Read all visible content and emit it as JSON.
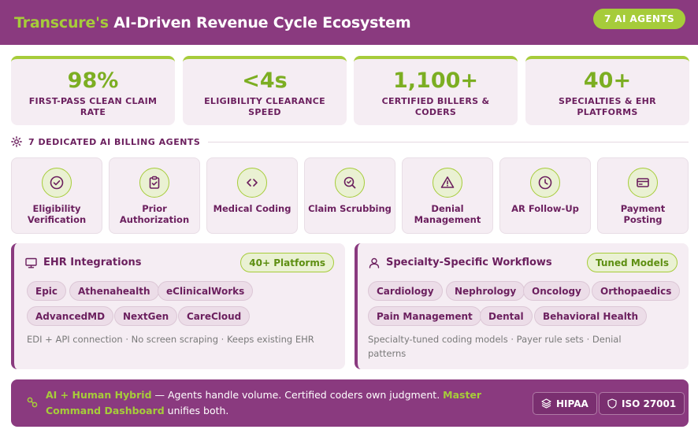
{
  "header": {
    "brand": "Transcure's",
    "title_rest": " AI-Driven Revenue Cycle Ecosystem",
    "badge": "7 AI AGENTS"
  },
  "stats": [
    {
      "value": "98%",
      "label": "FIRST-PASS CLEAN CLAIM RATE"
    },
    {
      "value": "<4s",
      "label": "ELIGIBILITY CLEARANCE SPEED"
    },
    {
      "value": "1,100+",
      "label": "CERTIFIED BILLERS & CODERS"
    },
    {
      "value": "40+",
      "label": "SPECIALTIES & EHR PLATFORMS"
    }
  ],
  "agents_section": {
    "label": "7 DEDICATED AI BILLING AGENTS",
    "icon": "sparkle-icon"
  },
  "agents": [
    {
      "name": "Eligibility Verification",
      "icon": "check-circle-icon"
    },
    {
      "name": "Prior Authorization",
      "icon": "clipboard-check-icon"
    },
    {
      "name": "Medical Coding",
      "icon": "code-brackets-icon"
    },
    {
      "name": "Claim Scrubbing",
      "icon": "search-check-icon"
    },
    {
      "name": "Denial Management",
      "icon": "warning-triangle-icon"
    },
    {
      "name": "AR Follow-Up",
      "icon": "clock-icon"
    },
    {
      "name": "Payment Posting",
      "icon": "credit-card-icon"
    }
  ],
  "ehr": {
    "title": "EHR Integrations",
    "pill": "40+ Platforms",
    "tags": [
      "Epic",
      "Athenahealth",
      "eClinicalWorks",
      "AdvancedMD",
      "NextGen",
      "CareCloud"
    ],
    "note": "EDI + API connection · No screen scraping · Keeps existing EHR"
  },
  "specialty": {
    "title": "Specialty-Specific Workflows",
    "pill": "Tuned Models",
    "tags": [
      "Cardiology",
      "Nephrology",
      "Oncology",
      "Orthopaedics",
      "Pain Management",
      "Dental",
      "Behavioral Health"
    ],
    "note": "Specialty-tuned coding models · Payer rule sets · Denial patterns"
  },
  "footer": {
    "hl1": "AI + Human Hybrid",
    "text1": " — Agents handle volume. Certified coders own judgment. ",
    "hl2": "Master Command Dashboard",
    "text2": " unifies both.",
    "badges": [
      "HIPAA",
      "ISO 27001"
    ]
  },
  "colors": {
    "primary": "#8a3a7f",
    "accent": "#a6cc3a",
    "text": "#6b1f5e",
    "card": "#f5edf3"
  }
}
